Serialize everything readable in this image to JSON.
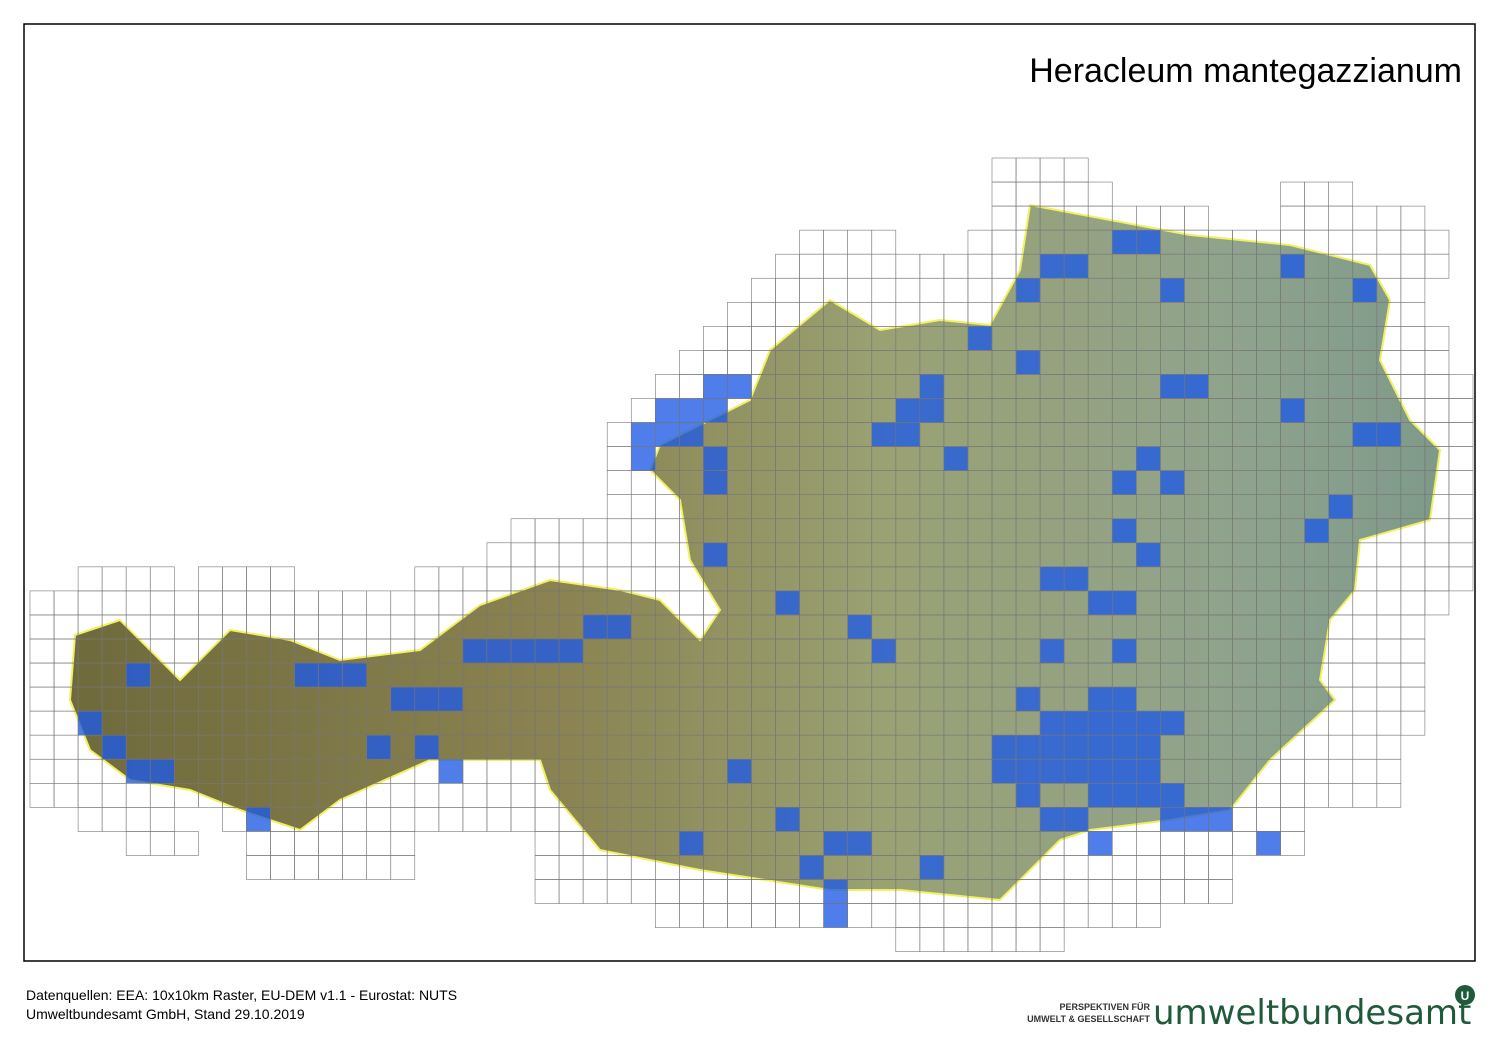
{
  "map": {
    "title": "Heracleum mantegazzianum"
  },
  "footer": {
    "sources": "Datenquellen: EEA: 10x10km Raster, EU-DEM v1.1 - Eurostat: NUTS",
    "credit": "Umweltbundesamt GmbH, Stand 29.10.2019"
  },
  "logo": {
    "tagline_1": "PERSPEKTIVEN FÜR",
    "tagline_2": "UMWELT & GESELLSCHAFT",
    "name": "umweltbundesamt",
    "badge": "U"
  }
}
